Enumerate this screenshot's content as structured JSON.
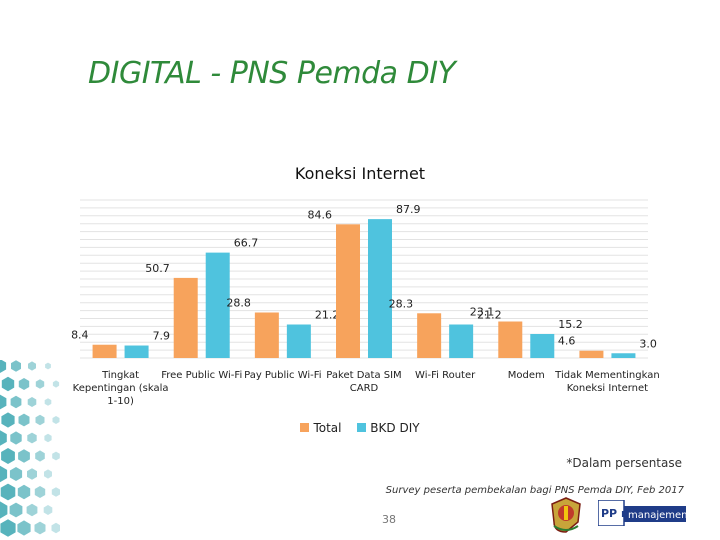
{
  "slide": {
    "title": "DIGITAL - PNS Pemda DIY",
    "note": "*Dalam persentase",
    "source": "Survey peserta pembekalan bagi PNS Pemda DIY, Feb 2017",
    "page_number": "38",
    "logo_text": "manajemen",
    "logo_mark": "PP m"
  },
  "colors": {
    "title": "#2f8a3a",
    "total_bar": "#f7a35c",
    "bkd_bar": "#4fc3de",
    "decor": "#3aa6b0"
  },
  "chart_data": {
    "type": "bar",
    "title": "Koneksi Internet",
    "categories": [
      "Tingkat Kepentingan (skala 1-10)",
      "Free Public Wi-Fi",
      "Pay Public Wi-Fi",
      "Paket Data SIM CARD",
      "Wi-Fi Router",
      "Modem",
      "Tidak Mementingkan Koneksi Internet"
    ],
    "series": [
      {
        "name": "Total",
        "values": [
          8.4,
          50.7,
          28.8,
          84.6,
          28.3,
          23.1,
          4.6
        ],
        "labels": [
          "8.4",
          "50.7",
          "28.8",
          "84.6",
          "28.3",
          "23.1",
          "4.6"
        ]
      },
      {
        "name": "BKD DIY",
        "values": [
          7.9,
          66.7,
          21.2,
          87.9,
          21.2,
          15.2,
          3.0
        ],
        "labels": [
          "7.9",
          "66.7",
          "21.2",
          "87.9",
          "21.2",
          "15.2",
          "3.0"
        ]
      }
    ],
    "ylim": [
      0,
      100
    ],
    "grid": true,
    "legend": "bottom"
  }
}
